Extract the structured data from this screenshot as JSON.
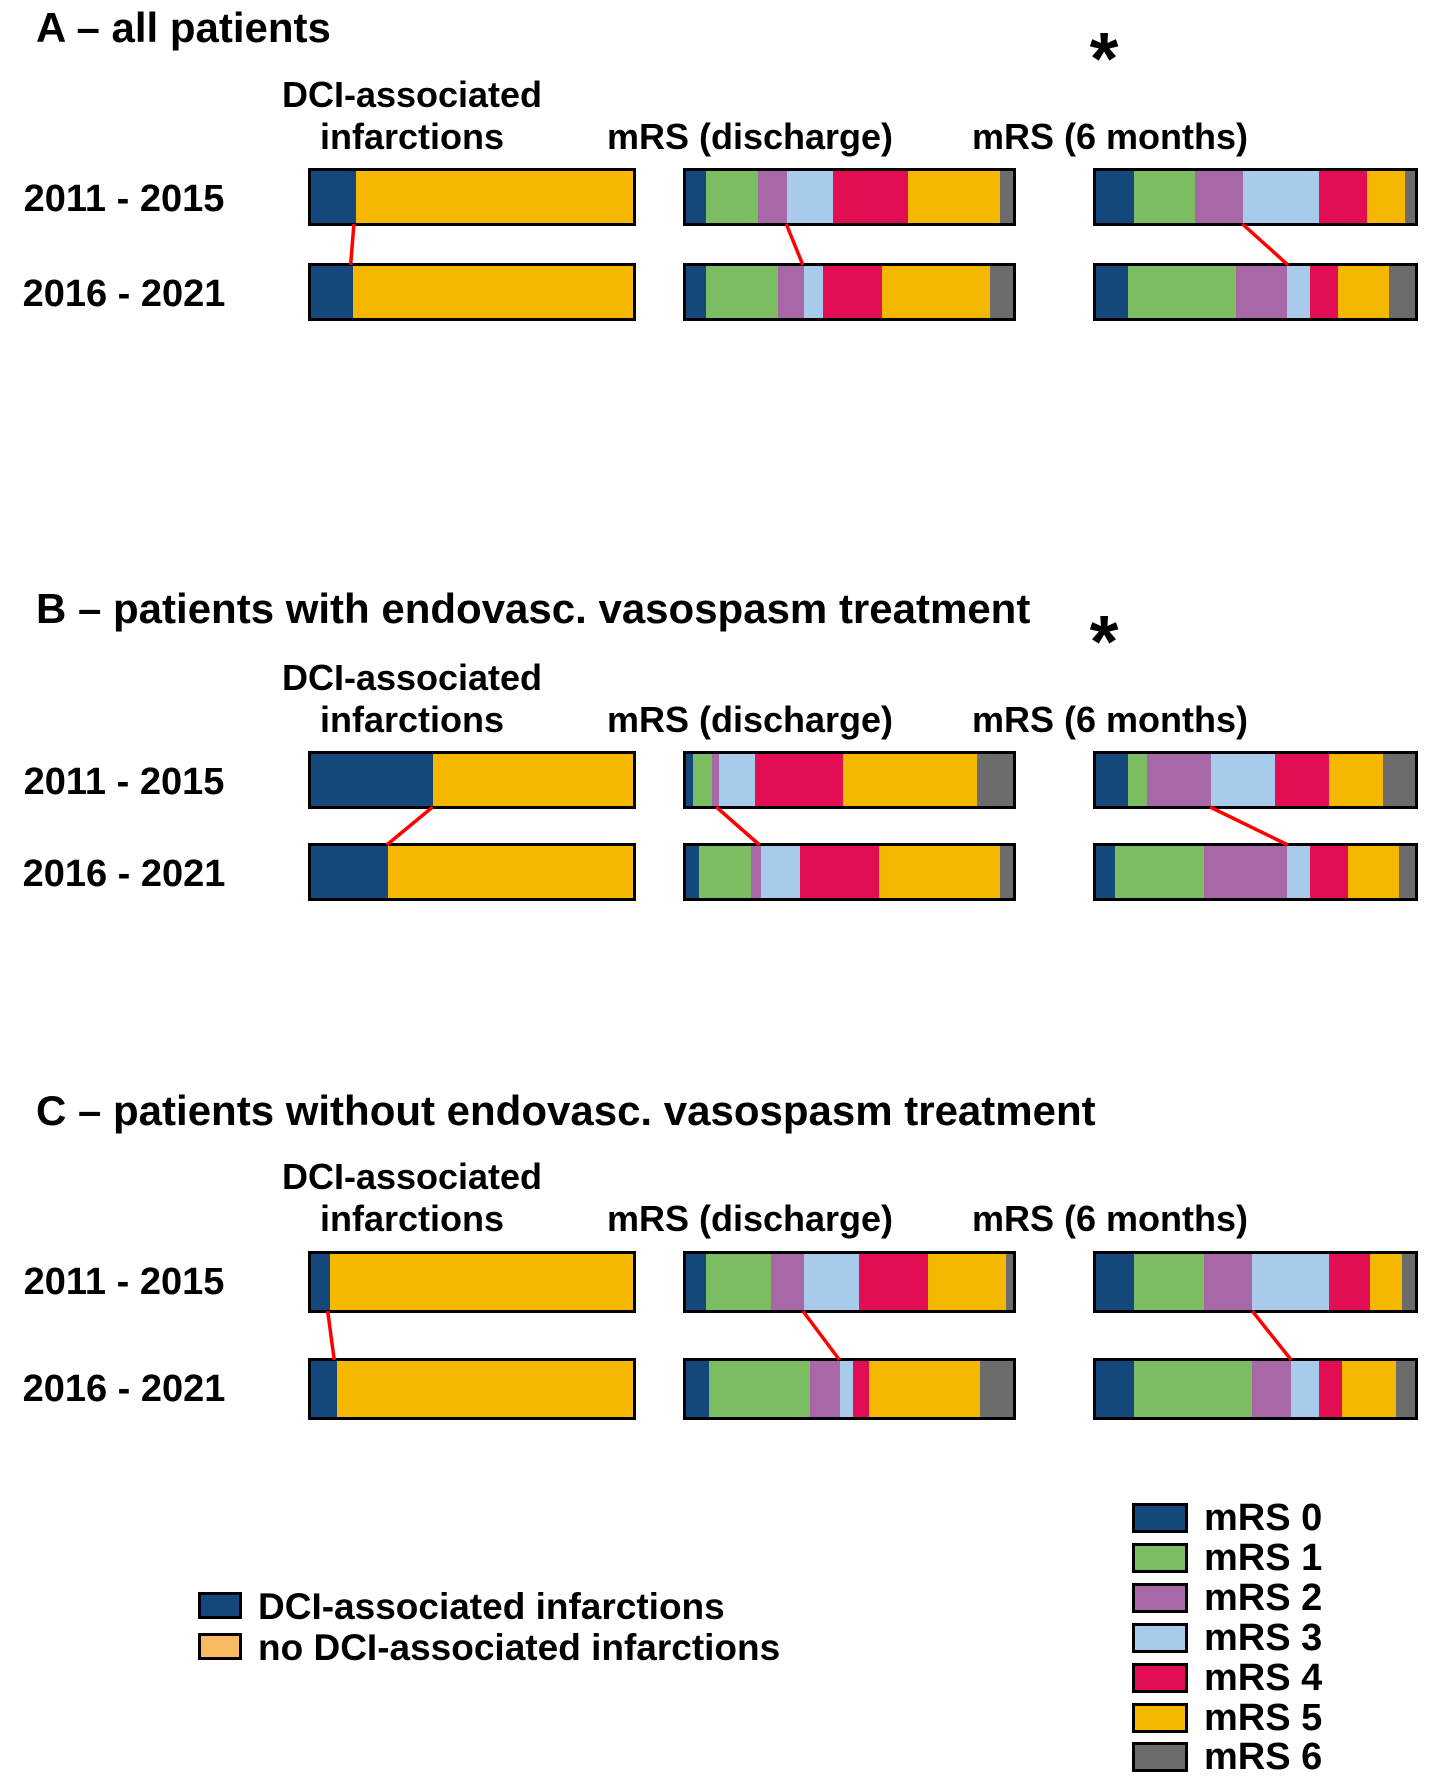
{
  "palette": {
    "mrs0": "#14477C",
    "mrs1": "#7DBD62",
    "mrs2": "#A867A6",
    "mrs3": "#A9CBEB",
    "mrs4": "#E20D53",
    "mrs5": "#F6B700",
    "mrs6": "#6C6C6C",
    "dci": "#14477C",
    "no_dci_bar": "#F6B700",
    "no_dci_legend": "#F9BA61",
    "connector": "#FF0000"
  },
  "chart_data": [
    {
      "type": "stacked_bar_h",
      "panel_label": "A",
      "title": "A – all patients",
      "significance_marker": "*",
      "rows": [
        "2011 - 2015",
        "2016 - 2021"
      ],
      "groups": {
        "dci": {
          "header_line1": "DCI-associated",
          "header_line2": "infarctions",
          "categories": [
            "DCI-associated infarctions",
            "no DCI-associated infarctions"
          ],
          "values_pct": {
            "r1": [
              14,
              86
            ],
            "r2": [
              13,
              87
            ]
          },
          "connector_pct": [
            14,
            13
          ]
        },
        "discharge": {
          "header": "mRS (discharge)",
          "categories": [
            "mRS 0",
            "mRS 1",
            "mRS 2",
            "mRS 3",
            "mRS 4",
            "mRS 5",
            "mRS 6"
          ],
          "values_pct": {
            "r1": [
              6,
              16,
              9,
              14,
              23,
              28,
              4
            ],
            "r2": [
              6,
              22,
              8,
              6,
              18,
              33,
              7
            ]
          },
          "connector_pct": [
            31,
            36
          ]
        },
        "six_months": {
          "header": "mRS (6 months)",
          "categories": [
            "mRS 0",
            "mRS 1",
            "mRS 2",
            "mRS 3",
            "mRS 4",
            "mRS 5",
            "mRS 6"
          ],
          "values_pct": {
            "r1": [
              12,
              19,
              15,
              24,
              15,
              12,
              3
            ],
            "r2": [
              10,
              34,
              16,
              7,
              9,
              16,
              8
            ]
          },
          "connector_pct": [
            46,
            60
          ]
        }
      }
    },
    {
      "type": "stacked_bar_h",
      "panel_label": "B",
      "title": "B – patients with endovasc. vasospasm treatment",
      "significance_marker": "*",
      "rows": [
        "2011 - 2015",
        "2016 - 2021"
      ],
      "groups": {
        "dci": {
          "header_line1": "DCI-associated",
          "header_line2": "infarctions",
          "categories": [
            "DCI-associated infarctions",
            "no DCI-associated infarctions"
          ],
          "values_pct": {
            "r1": [
              38,
              62
            ],
            "r2": [
              24,
              76
            ]
          },
          "connector_pct": [
            38,
            24
          ]
        },
        "discharge": {
          "header": "mRS (discharge)",
          "categories": [
            "mRS 0",
            "mRS 1",
            "mRS 2",
            "mRS 3",
            "mRS 4",
            "mRS 5",
            "mRS 6"
          ],
          "values_pct": {
            "r1": [
              2,
              6,
              2,
              11,
              27,
              41,
              11
            ],
            "r2": [
              4,
              16,
              3,
              12,
              24,
              37,
              4
            ]
          },
          "connector_pct": [
            10,
            23
          ]
        },
        "six_months": {
          "header": "mRS (6 months)",
          "categories": [
            "mRS 0",
            "mRS 1",
            "mRS 2",
            "mRS 3",
            "mRS 4",
            "mRS 5",
            "mRS 6"
          ],
          "values_pct": {
            "r1": [
              10,
              6,
              20,
              20,
              17,
              17,
              10
            ],
            "r2": [
              6,
              28,
              26,
              7,
              12,
              16,
              5
            ]
          },
          "connector_pct": [
            36,
            60
          ]
        }
      }
    },
    {
      "type": "stacked_bar_h",
      "panel_label": "C",
      "title": "C – patients without endovasc. vasospasm treatment",
      "significance_marker": "",
      "rows": [
        "2011 - 2015",
        "2016 - 2021"
      ],
      "groups": {
        "dci": {
          "header_line1": "DCI-associated",
          "header_line2": "infarctions",
          "categories": [
            "DCI-associated infarctions",
            "no DCI-associated infarctions"
          ],
          "values_pct": {
            "r1": [
              6,
              94
            ],
            "r2": [
              8,
              92
            ]
          },
          "connector_pct": [
            6,
            8
          ]
        },
        "discharge": {
          "header": "mRS (discharge)",
          "categories": [
            "mRS 0",
            "mRS 1",
            "mRS 2",
            "mRS 3",
            "mRS 4",
            "mRS 5",
            "mRS 6"
          ],
          "values_pct": {
            "r1": [
              6,
              20,
              10,
              17,
              21,
              24,
              2
            ],
            "r2": [
              7,
              31,
              9,
              4,
              5,
              34,
              10
            ]
          },
          "connector_pct": [
            36,
            47
          ]
        },
        "six_months": {
          "header": "mRS (6 months)",
          "categories": [
            "mRS 0",
            "mRS 1",
            "mRS 2",
            "mRS 3",
            "mRS 4",
            "mRS 5",
            "mRS 6"
          ],
          "values_pct": {
            "r1": [
              12,
              22,
              15,
              24,
              13,
              10,
              4
            ],
            "r2": [
              12,
              37,
              12,
              9,
              7,
              17,
              6
            ]
          },
          "connector_pct": [
            49,
            61
          ]
        }
      }
    }
  ],
  "legend_dci": {
    "items": [
      {
        "label": "DCI-associated infarctions"
      },
      {
        "label": "no DCI-associated infarctions"
      }
    ]
  },
  "legend_mrs": {
    "items": [
      {
        "label": "mRS 0"
      },
      {
        "label": "mRS 1"
      },
      {
        "label": "mRS 2"
      },
      {
        "label": "mRS 3"
      },
      {
        "label": "mRS 4"
      },
      {
        "label": "mRS 5"
      },
      {
        "label": "mRS 6"
      }
    ]
  }
}
